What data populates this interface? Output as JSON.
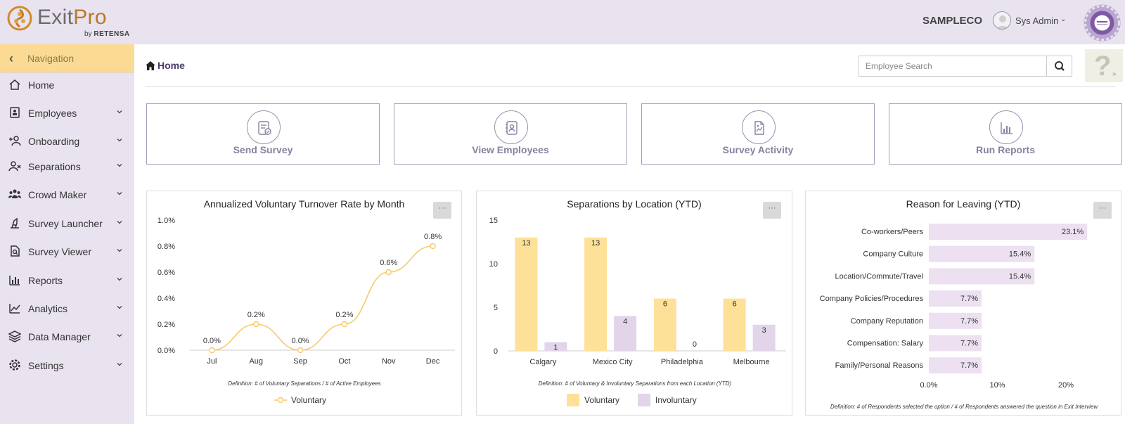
{
  "header": {
    "logo_main": "Exit",
    "logo_accent": "Pro",
    "logo_by": "by",
    "logo_company": "RETENSA",
    "company": "SAMPLECO",
    "user": "Sys Admin",
    "user_caret": "⌄"
  },
  "sidebar": {
    "nav_label": "Navigation",
    "items": [
      {
        "label": "Home",
        "icon": "home-icon",
        "caret": false
      },
      {
        "label": "Employees",
        "icon": "id-card-icon",
        "caret": true
      },
      {
        "label": "Onboarding",
        "icon": "add-user-icon",
        "caret": true
      },
      {
        "label": "Separations",
        "icon": "remove-user-icon",
        "caret": true
      },
      {
        "label": "Crowd Maker",
        "icon": "users-icon",
        "caret": true
      },
      {
        "label": "Survey Launcher",
        "icon": "launcher-icon",
        "caret": true
      },
      {
        "label": "Survey Viewer",
        "icon": "document-search-icon",
        "caret": true
      },
      {
        "label": "Reports",
        "icon": "bar-chart-icon",
        "caret": true
      },
      {
        "label": "Analytics",
        "icon": "line-chart-icon",
        "caret": true
      },
      {
        "label": "Data Manager",
        "icon": "layers-icon",
        "caret": true
      },
      {
        "label": "Settings",
        "icon": "gear-icon",
        "caret": true
      }
    ]
  },
  "main": {
    "breadcrumb": "Home",
    "search_placeholder": "Employee Search",
    "help": "?",
    "quick_links": [
      {
        "label": "Send Survey",
        "icon": "send-survey-icon"
      },
      {
        "label": "View Employees",
        "icon": "contacts-book-icon"
      },
      {
        "label": "Survey Activity",
        "icon": "activity-file-icon"
      },
      {
        "label": "Run Reports",
        "icon": "report-chart-icon"
      }
    ],
    "menu_label": "···"
  },
  "colors": {
    "voluntary": "#fee198",
    "involuntary": "#e2d5ea",
    "line": "#f7c96a",
    "reason_bar": "#ece0f1",
    "nav_active": "#fbdb94"
  },
  "chart_data": [
    {
      "type": "line",
      "title": "Annualized Voluntary Turnover Rate by Month",
      "categories": [
        "Jul",
        "Aug",
        "Sep",
        "Oct",
        "Nov",
        "Dec"
      ],
      "series": [
        {
          "name": "Voluntary",
          "values": [
            0.0,
            0.2,
            0.0,
            0.2,
            0.6,
            0.8
          ]
        }
      ],
      "data_labels": [
        "0.0%",
        "0.2%",
        "0.0%",
        "0.2%",
        "0.6%",
        "0.8%"
      ],
      "ylim": [
        0,
        1.0
      ],
      "yticks": [
        "0.0%",
        "0.2%",
        "0.4%",
        "0.6%",
        "0.8%",
        "1.0%"
      ],
      "definition": "Definition: # of Voluntary Separations / # of Active Employees",
      "legend": "bottom"
    },
    {
      "type": "bar",
      "title": "Separations by Location (YTD)",
      "categories": [
        "Calgary",
        "Mexico City",
        "Philadelphia",
        "Melbourne"
      ],
      "series": [
        {
          "name": "Voluntary",
          "values": [
            13,
            13,
            6,
            6
          ]
        },
        {
          "name": "Involuntary",
          "values": [
            1,
            4,
            0,
            3
          ]
        }
      ],
      "ylim": [
        0,
        15
      ],
      "yticks": [
        "0",
        "5",
        "10",
        "15"
      ],
      "definition": "Definition: # of Voluntary & Involuntary Separations from each Location (YTD)",
      "legend": "bottom"
    },
    {
      "type": "bar",
      "orientation": "horizontal",
      "title": "Reason for Leaving (YTD)",
      "categories": [
        "Co-workers/Peers",
        "Company Culture",
        "Location/Commute/Travel",
        "Company Policies/Procedures",
        "Company Reputation",
        "Compensation: Salary",
        "Family/Personal Reasons"
      ],
      "values": [
        23.1,
        15.4,
        15.4,
        7.7,
        7.7,
        7.7,
        7.7
      ],
      "data_labels": [
        "23.1%",
        "15.4%",
        "15.4%",
        "7.7%",
        "7.7%",
        "7.7%",
        "7.7%"
      ],
      "xticks": [
        "0.0%",
        "10%",
        "20%"
      ],
      "xlim": [
        0,
        23.9
      ],
      "definition": "Definition: # of Respondents selected the option / # of Respondents answered the question in Exit Interview"
    }
  ]
}
